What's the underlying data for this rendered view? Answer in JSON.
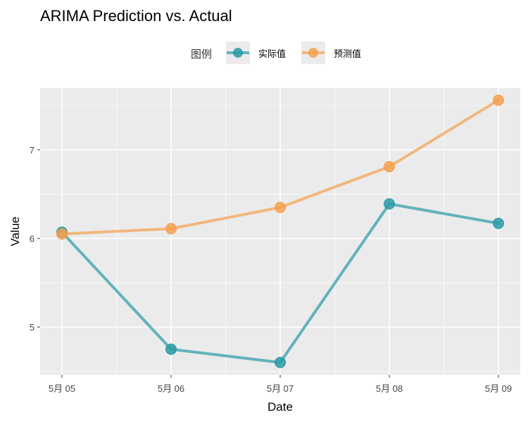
{
  "chart_data": {
    "type": "line",
    "title": "ARIMA Prediction vs. Actual",
    "xlabel": "Date",
    "ylabel": "Value",
    "legend": {
      "title": "图例",
      "position": "top"
    },
    "x": [
      "5月 05",
      "5月 06",
      "5月 07",
      "5月 08",
      "5月 09"
    ],
    "ylim": [
      4.5,
      7.6
    ],
    "yticks": [
      5,
      6,
      7
    ],
    "grid": true,
    "series": [
      {
        "name": "实际值",
        "color": "#2a9aa5",
        "values": [
          6.07,
          4.75,
          4.6,
          6.39,
          6.17
        ]
      },
      {
        "name": "预测值",
        "color": "#f5a04d",
        "values": [
          6.05,
          6.11,
          6.35,
          6.81,
          7.56
        ]
      }
    ]
  }
}
